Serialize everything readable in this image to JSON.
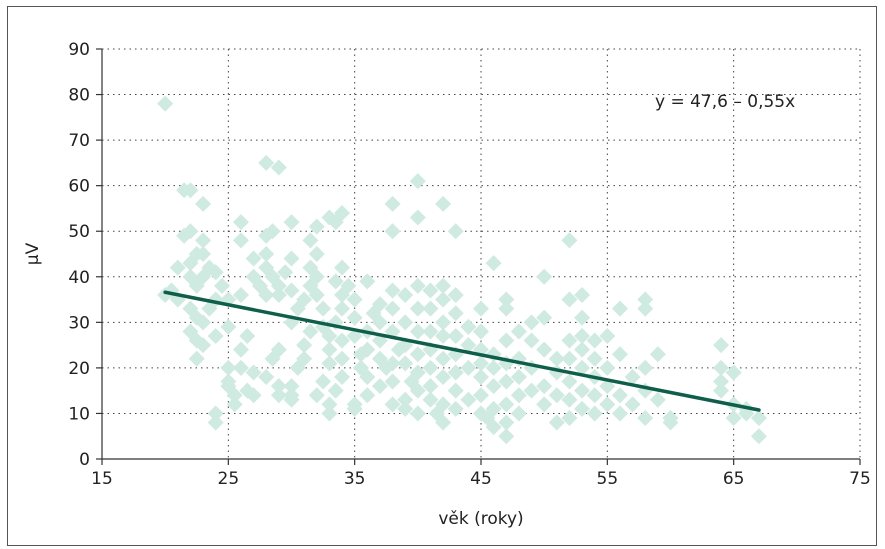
{
  "chart_data": {
    "type": "scatter",
    "xlabel": "věk (roky)",
    "ylabel": "µV",
    "xlim": [
      15,
      75
    ],
    "ylim": [
      0,
      90
    ],
    "xticks": [
      "15",
      "25",
      "35",
      "45",
      "55",
      "65",
      "75"
    ],
    "yticks": [
      "0",
      "10",
      "20",
      "30",
      "40",
      "50",
      "60",
      "70",
      "80",
      "90"
    ],
    "grid": true,
    "annotation": "y = 47,6 – 0,55x",
    "marker_color": "#cfeae1",
    "line_color": "#0f5e4b",
    "regression": {
      "intercept": 47.6,
      "slope": -0.55,
      "x_start": 20,
      "x_end": 67
    },
    "points": [
      [
        20,
        78
      ],
      [
        21.5,
        59
      ],
      [
        22,
        59
      ],
      [
        21.5,
        49
      ],
      [
        22,
        50
      ],
      [
        22.5,
        45
      ],
      [
        23,
        56
      ],
      [
        23,
        48
      ],
      [
        23,
        45
      ],
      [
        22,
        43
      ],
      [
        21,
        42
      ],
      [
        20.5,
        37
      ],
      [
        20,
        36
      ],
      [
        21,
        35
      ],
      [
        22,
        40
      ],
      [
        22.5,
        38
      ],
      [
        23,
        40
      ],
      [
        23.5,
        42
      ],
      [
        24,
        41
      ],
      [
        24.5,
        38
      ],
      [
        22,
        33
      ],
      [
        22.5,
        31
      ],
      [
        23,
        30
      ],
      [
        23.5,
        33
      ],
      [
        24,
        35
      ],
      [
        22,
        28
      ],
      [
        22.5,
        26
      ],
      [
        22.5,
        22
      ],
      [
        23,
        25
      ],
      [
        24,
        27
      ],
      [
        24,
        10
      ],
      [
        24,
        8
      ],
      [
        25,
        17
      ],
      [
        25,
        16
      ],
      [
        25.5,
        14
      ],
      [
        25.5,
        12
      ],
      [
        25,
        20
      ],
      [
        26,
        20
      ],
      [
        26,
        24
      ],
      [
        25,
        29
      ],
      [
        25,
        35
      ],
      [
        26,
        36
      ],
      [
        26,
        48
      ],
      [
        26,
        52
      ],
      [
        26.5,
        27
      ],
      [
        27,
        19
      ],
      [
        27,
        14
      ],
      [
        26.5,
        15
      ],
      [
        27,
        44
      ],
      [
        27,
        40
      ],
      [
        27.5,
        38
      ],
      [
        28,
        36
      ],
      [
        28,
        42
      ],
      [
        28,
        45
      ],
      [
        28,
        49
      ],
      [
        28.5,
        50
      ],
      [
        28,
        65
      ],
      [
        29,
        64
      ],
      [
        28.5,
        40
      ],
      [
        29,
        38
      ],
      [
        29,
        36
      ],
      [
        29.5,
        41
      ],
      [
        30,
        44
      ],
      [
        30,
        52
      ],
      [
        30,
        37
      ],
      [
        29,
        24
      ],
      [
        28.5,
        22
      ],
      [
        28,
        18
      ],
      [
        29,
        16
      ],
      [
        29,
        14
      ],
      [
        30,
        14
      ],
      [
        30,
        16
      ],
      [
        30,
        13
      ],
      [
        30.5,
        20
      ],
      [
        31,
        22
      ],
      [
        31,
        25
      ],
      [
        31.5,
        28
      ],
      [
        30,
        30
      ],
      [
        30.5,
        33
      ],
      [
        31,
        35
      ],
      [
        31.5,
        38
      ],
      [
        31.5,
        42
      ],
      [
        32,
        45
      ],
      [
        31.5,
        48
      ],
      [
        32,
        51
      ],
      [
        32,
        40
      ],
      [
        32,
        36
      ],
      [
        32.5,
        33
      ],
      [
        32.5,
        29
      ],
      [
        33,
        27
      ],
      [
        33,
        24
      ],
      [
        33,
        21
      ],
      [
        32.5,
        17
      ],
      [
        32,
        14
      ],
      [
        33,
        12
      ],
      [
        33,
        10
      ],
      [
        33.5,
        15
      ],
      [
        34,
        18
      ],
      [
        34,
        22
      ],
      [
        34,
        26
      ],
      [
        33.5,
        30
      ],
      [
        34,
        33
      ],
      [
        34,
        36
      ],
      [
        33.5,
        39
      ],
      [
        34,
        42
      ],
      [
        33.5,
        52
      ],
      [
        34,
        54
      ],
      [
        33,
        53
      ],
      [
        34.5,
        38
      ],
      [
        35,
        35
      ],
      [
        35,
        31
      ],
      [
        35,
        27
      ],
      [
        35.5,
        23
      ],
      [
        35.5,
        20
      ],
      [
        36,
        18
      ],
      [
        35,
        12
      ],
      [
        35,
        11
      ],
      [
        36,
        14
      ],
      [
        36,
        24
      ],
      [
        36,
        28
      ],
      [
        36.5,
        32
      ],
      [
        36,
        39
      ],
      [
        37,
        34
      ],
      [
        37,
        30
      ],
      [
        37,
        26
      ],
      [
        37,
        22
      ],
      [
        37.5,
        20
      ],
      [
        37,
        16
      ],
      [
        38,
        12
      ],
      [
        38,
        17
      ],
      [
        38,
        21
      ],
      [
        38.5,
        24
      ],
      [
        38,
        28
      ],
      [
        38,
        33
      ],
      [
        38,
        37
      ],
      [
        38,
        50
      ],
      [
        38,
        56
      ],
      [
        39,
        36
      ],
      [
        39,
        30
      ],
      [
        39,
        25
      ],
      [
        39,
        21
      ],
      [
        39.5,
        17
      ],
      [
        39,
        13
      ],
      [
        39,
        11
      ],
      [
        40,
        10
      ],
      [
        40,
        15
      ],
      [
        40,
        19
      ],
      [
        40,
        23
      ],
      [
        40,
        28
      ],
      [
        40,
        33
      ],
      [
        40,
        38
      ],
      [
        40,
        53
      ],
      [
        40,
        61
      ],
      [
        41,
        37
      ],
      [
        41,
        33
      ],
      [
        41,
        28
      ],
      [
        41,
        24
      ],
      [
        41,
        20
      ],
      [
        41,
        16
      ],
      [
        41,
        13
      ],
      [
        41.5,
        10
      ],
      [
        42,
        8
      ],
      [
        42,
        12
      ],
      [
        42,
        18
      ],
      [
        42,
        22
      ],
      [
        42,
        27
      ],
      [
        42,
        30
      ],
      [
        42,
        35
      ],
      [
        42,
        38
      ],
      [
        42,
        56
      ],
      [
        43,
        50
      ],
      [
        43,
        36
      ],
      [
        43,
        32
      ],
      [
        43,
        27
      ],
      [
        43,
        23
      ],
      [
        43,
        19
      ],
      [
        43,
        15
      ],
      [
        43,
        11
      ],
      [
        44,
        13
      ],
      [
        44,
        20
      ],
      [
        44,
        25
      ],
      [
        44,
        29
      ],
      [
        45,
        33
      ],
      [
        45,
        28
      ],
      [
        45,
        24
      ],
      [
        45,
        21
      ],
      [
        45,
        18
      ],
      [
        45,
        14
      ],
      [
        45,
        10
      ],
      [
        45.5,
        9
      ],
      [
        46,
        7
      ],
      [
        46,
        11
      ],
      [
        46,
        16
      ],
      [
        46,
        20
      ],
      [
        46,
        23
      ],
      [
        46,
        43
      ],
      [
        47,
        35
      ],
      [
        47,
        33
      ],
      [
        47,
        26
      ],
      [
        47,
        21
      ],
      [
        47,
        17
      ],
      [
        47,
        12
      ],
      [
        47,
        8
      ],
      [
        47,
        5
      ],
      [
        48,
        10
      ],
      [
        48,
        14
      ],
      [
        48,
        18
      ],
      [
        48,
        22
      ],
      [
        48,
        28
      ],
      [
        49,
        26
      ],
      [
        49,
        20
      ],
      [
        49,
        15
      ],
      [
        49,
        30
      ],
      [
        50,
        40
      ],
      [
        50,
        31
      ],
      [
        50,
        24
      ],
      [
        50,
        16
      ],
      [
        50,
        12
      ],
      [
        51,
        22
      ],
      [
        51,
        19
      ],
      [
        51,
        14
      ],
      [
        51,
        8
      ],
      [
        52,
        48
      ],
      [
        52,
        35
      ],
      [
        52,
        26
      ],
      [
        52,
        22
      ],
      [
        52,
        17
      ],
      [
        52,
        13
      ],
      [
        52,
        9
      ],
      [
        53,
        36
      ],
      [
        53,
        31
      ],
      [
        53,
        27
      ],
      [
        53,
        24
      ],
      [
        53,
        20
      ],
      [
        53,
        15
      ],
      [
        53,
        11
      ],
      [
        54,
        26
      ],
      [
        54,
        22
      ],
      [
        54,
        18
      ],
      [
        54,
        14
      ],
      [
        54,
        10
      ],
      [
        55,
        27
      ],
      [
        55,
        20
      ],
      [
        55,
        16
      ],
      [
        55,
        12
      ],
      [
        56,
        33
      ],
      [
        56,
        23
      ],
      [
        56,
        14
      ],
      [
        56,
        10
      ],
      [
        57,
        18
      ],
      [
        57,
        12
      ],
      [
        58,
        35
      ],
      [
        58,
        33
      ],
      [
        58,
        20
      ],
      [
        58,
        15
      ],
      [
        58,
        9
      ],
      [
        59,
        13
      ],
      [
        59,
        23
      ],
      [
        60,
        9
      ],
      [
        60,
        8
      ],
      [
        64,
        25
      ],
      [
        64,
        20
      ],
      [
        64,
        17
      ],
      [
        64,
        15
      ],
      [
        65,
        19
      ],
      [
        65,
        12
      ],
      [
        65,
        9
      ],
      [
        66,
        11
      ],
      [
        66,
        10
      ],
      [
        67,
        9
      ],
      [
        67,
        5
      ]
    ]
  }
}
